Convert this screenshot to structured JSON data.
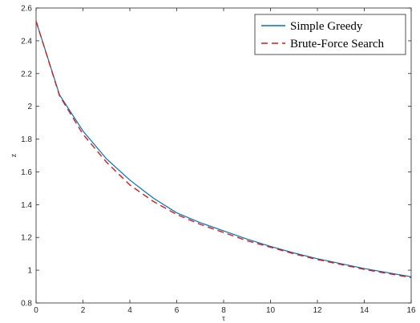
{
  "chart_data": {
    "type": "line",
    "title": "",
    "xlabel": "τ",
    "ylabel": "z",
    "xlim": [
      0,
      16
    ],
    "ylim": [
      0.8,
      2.6
    ],
    "xticks": [
      0,
      2,
      4,
      6,
      8,
      10,
      12,
      14,
      16
    ],
    "yticks": [
      0.8,
      1.0,
      1.2,
      1.4,
      1.6,
      1.8,
      2.0,
      2.2,
      2.4,
      2.6
    ],
    "xtick_labels": [
      "0",
      "2",
      "4",
      "6",
      "8",
      "10",
      "12",
      "14",
      "16"
    ],
    "ytick_labels": [
      "0.8",
      "1",
      "1.2",
      "1.4",
      "1.6",
      "1.8",
      "2",
      "2.2",
      "2.4",
      "2.6"
    ],
    "grid": false,
    "legend_position": "top-right",
    "x": [
      0,
      1,
      2,
      3,
      4,
      5,
      6,
      7,
      8,
      9,
      10,
      11,
      12,
      13,
      14,
      15,
      16
    ],
    "series": [
      {
        "name": "Simple Greedy",
        "color": "#0072BD",
        "style": "solid",
        "values": [
          2.52,
          2.07,
          1.85,
          1.68,
          1.55,
          1.44,
          1.35,
          1.29,
          1.24,
          1.19,
          1.145,
          1.105,
          1.07,
          1.04,
          1.01,
          0.985,
          0.96
        ]
      },
      {
        "name": "Brute-Force Search",
        "color": "#D7191C",
        "style": "dashed",
        "values": [
          2.52,
          2.065,
          1.83,
          1.66,
          1.52,
          1.42,
          1.34,
          1.28,
          1.23,
          1.18,
          1.14,
          1.1,
          1.065,
          1.035,
          1.005,
          0.98,
          0.955
        ]
      }
    ]
  }
}
